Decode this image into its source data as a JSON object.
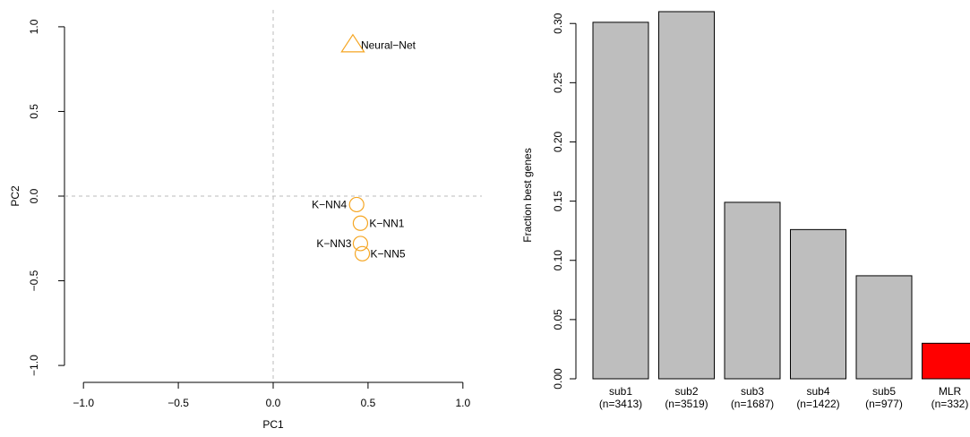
{
  "chart_data": [
    {
      "type": "scatter",
      "xlabel": "PC1",
      "ylabel": "PC2",
      "xlim": [
        -1.1,
        1.1
      ],
      "ylim": [
        -1.1,
        1.1
      ],
      "xticks": [
        -1.0,
        -0.5,
        0.0,
        0.5,
        1.0
      ],
      "yticks": [
        -1.0,
        -0.5,
        0.0,
        0.5,
        1.0
      ],
      "xtick_labels": [
        "−1.0",
        "−0.5",
        "0.0",
        "0.5",
        "1.0"
      ],
      "ytick_labels": [
        "−1.0",
        "−0.5",
        "0.0",
        "0.5",
        "1.0"
      ],
      "reference_lines": {
        "x": 0,
        "y": 0,
        "style": "dashed",
        "color": "#bbbbbb"
      },
      "marker_color": "#f5a623",
      "points": [
        {
          "label": "Neural−Net",
          "x": 0.42,
          "y": 0.89,
          "marker": "triangle"
        },
        {
          "label": "K−NN4",
          "x": 0.44,
          "y": -0.05,
          "marker": "circle"
        },
        {
          "label": "K−NN1",
          "x": 0.46,
          "y": -0.16,
          "marker": "circle"
        },
        {
          "label": "K−NN3",
          "x": 0.46,
          "y": -0.28,
          "marker": "circle"
        },
        {
          "label": "K−NN5",
          "x": 0.47,
          "y": -0.34,
          "marker": "circle"
        }
      ]
    },
    {
      "type": "bar",
      "ylabel": "Fraction best genes",
      "ylim": [
        0,
        0.31
      ],
      "yticks": [
        0.0,
        0.05,
        0.1,
        0.15,
        0.2,
        0.25,
        0.3
      ],
      "ytick_labels": [
        "0.00",
        "0.05",
        "0.10",
        "0.15",
        "0.20",
        "0.25",
        "0.30"
      ],
      "categories": [
        "sub1",
        "sub2",
        "sub3",
        "sub4",
        "sub5",
        "MLR"
      ],
      "category_counts": [
        "(n=3413)",
        "(n=3519)",
        "(n=1687)",
        "(n=1422)",
        "(n=977)",
        "(n=332)"
      ],
      "values": [
        0.301,
        0.31,
        0.149,
        0.126,
        0.087,
        0.03
      ],
      "colors": [
        "#bebebe",
        "#bebebe",
        "#bebebe",
        "#bebebe",
        "#bebebe",
        "#ff0000"
      ]
    }
  ]
}
